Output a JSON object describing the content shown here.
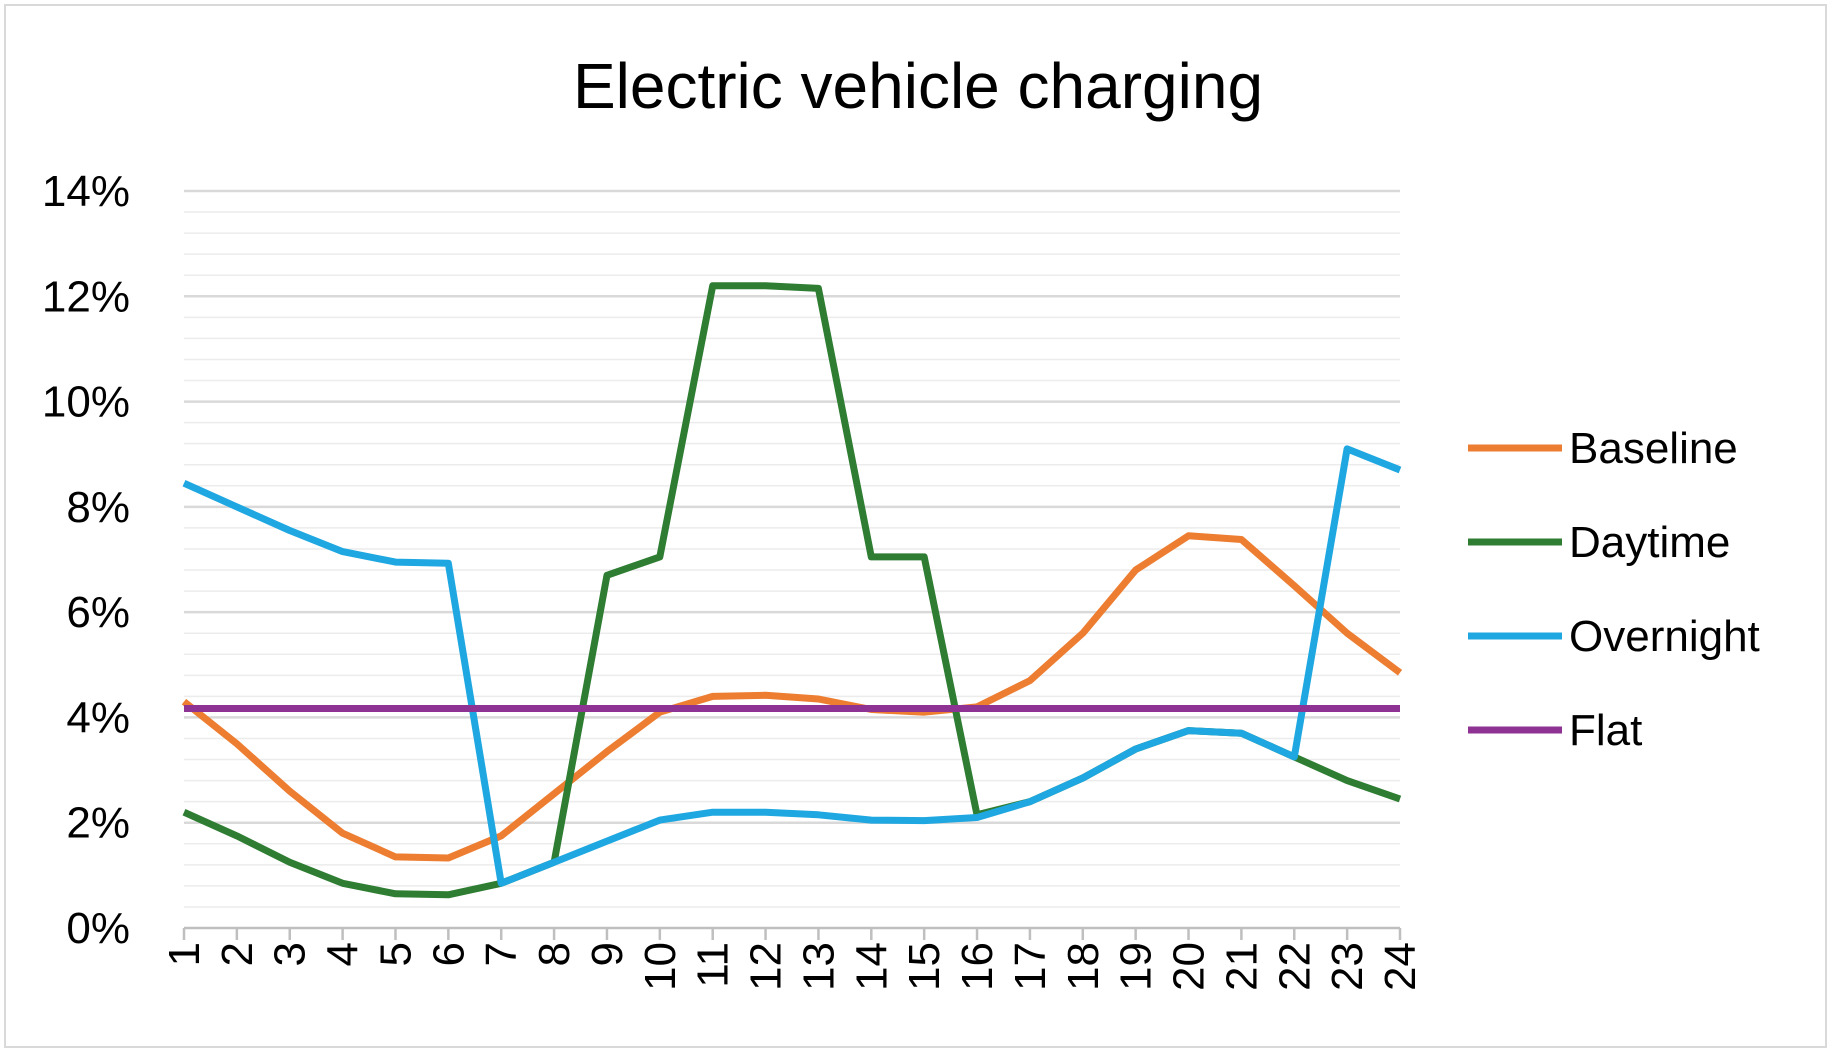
{
  "chart_data": {
    "type": "line",
    "title": "Electric vehicle charging",
    "xlabel": "",
    "ylabel": "",
    "categories": [
      "1",
      "2",
      "3",
      "4",
      "5",
      "6",
      "7",
      "8",
      "9",
      "10",
      "11",
      "12",
      "13",
      "14",
      "15",
      "16",
      "17",
      "18",
      "19",
      "20",
      "21",
      "22",
      "23",
      "24"
    ],
    "y_ticks": [
      "0%",
      "2%",
      "4%",
      "6%",
      "8%",
      "10%",
      "12%",
      "14%"
    ],
    "ylim": [
      0,
      14
    ],
    "y_unit": "%",
    "grid": true,
    "legend_position": "right",
    "series": [
      {
        "name": "Baseline",
        "color": "#ED7D31",
        "values": [
          4.3,
          3.5,
          2.6,
          1.8,
          1.35,
          1.33,
          1.75,
          2.55,
          3.35,
          4.1,
          4.4,
          4.42,
          4.35,
          4.15,
          4.1,
          4.2,
          4.7,
          5.6,
          6.8,
          7.45,
          7.38,
          6.5,
          5.6,
          4.85
        ]
      },
      {
        "name": "Daytime",
        "color": "#2E7D32",
        "values": [
          2.2,
          1.75,
          1.25,
          0.85,
          0.65,
          0.63,
          0.85,
          1.25,
          6.7,
          7.05,
          12.2,
          12.2,
          12.15,
          7.05,
          7.05,
          2.15,
          2.4,
          2.85,
          3.4,
          3.75,
          3.7,
          3.25,
          2.8,
          2.45
        ]
      },
      {
        "name": "Overnight",
        "color": "#1EA7E1",
        "values": [
          8.45,
          8.0,
          7.55,
          7.15,
          6.95,
          6.93,
          0.85,
          1.25,
          1.65,
          2.05,
          2.2,
          2.2,
          2.15,
          2.05,
          2.04,
          2.1,
          2.4,
          2.85,
          3.4,
          3.75,
          3.7,
          3.25,
          9.1,
          8.7
        ]
      },
      {
        "name": "Flat",
        "color": "#8E3293",
        "values": [
          4.17,
          4.17,
          4.17,
          4.17,
          4.17,
          4.17,
          4.17,
          4.17,
          4.17,
          4.17,
          4.17,
          4.17,
          4.17,
          4.17,
          4.17,
          4.17,
          4.17,
          4.17,
          4.17,
          4.17,
          4.17,
          4.17,
          4.17,
          4.17
        ]
      }
    ]
  }
}
